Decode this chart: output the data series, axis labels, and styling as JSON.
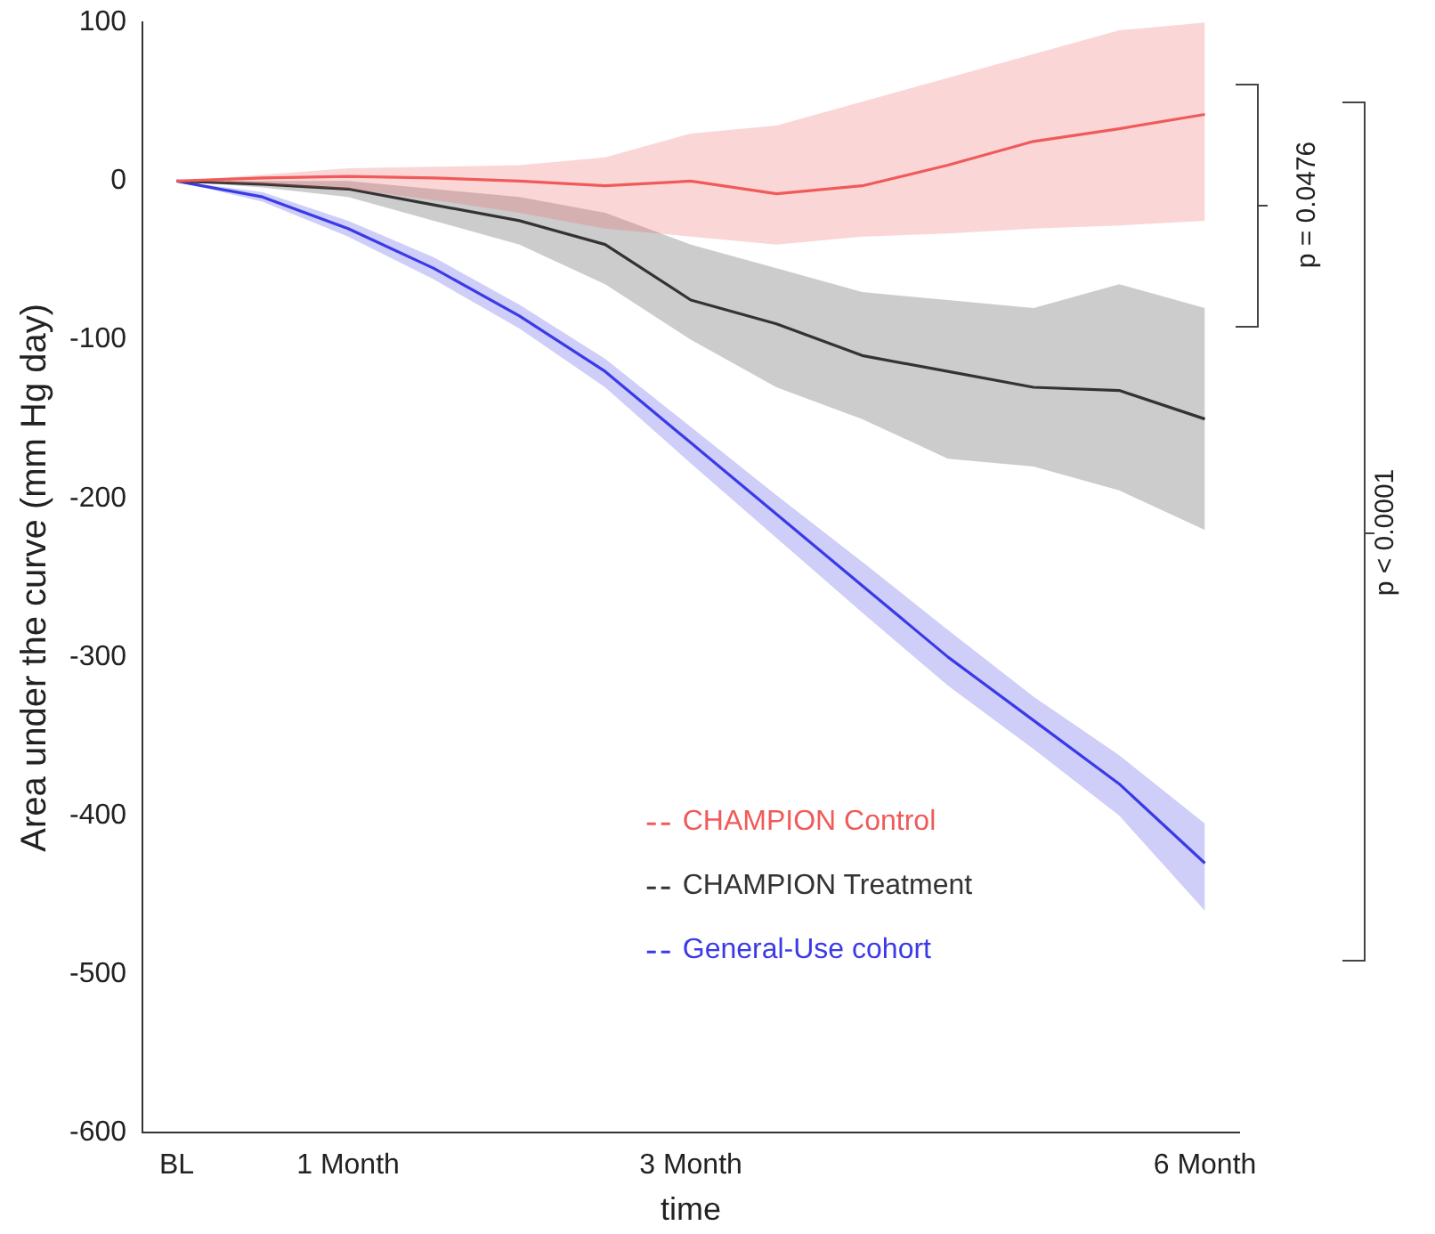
{
  "chart_data": {
    "type": "line",
    "xlabel": "time",
    "ylabel": "Area under the curve (mm Hg day)",
    "x": [
      0,
      0.5,
      1,
      1.5,
      2,
      2.5,
      3,
      3.5,
      4,
      4.5,
      5,
      5.5,
      6
    ],
    "xlim": [
      -0.2,
      6.2
    ],
    "xticks": [
      {
        "value": 0,
        "label": "BL"
      },
      {
        "value": 1,
        "label": "1 Month"
      },
      {
        "value": 3,
        "label": "3 Month"
      },
      {
        "value": 6,
        "label": "6 Month"
      }
    ],
    "ylim": [
      -600,
      100
    ],
    "yticks": [
      -600,
      -500,
      -400,
      -300,
      -200,
      -100,
      0,
      100
    ],
    "grid": false,
    "legend": "bottom right",
    "marker": "none",
    "line_style": "solid",
    "series": [
      {
        "name": "CHAMPION Control",
        "color": "#f05a5a",
        "values": [
          0,
          2,
          3,
          2,
          0,
          -3,
          0,
          -8,
          -3,
          10,
          25,
          33,
          42
        ],
        "lower": [
          0,
          -2,
          -5,
          -12,
          -20,
          -30,
          -35,
          -40,
          -35,
          -33,
          -30,
          -28,
          -25
        ],
        "upper": [
          0,
          4,
          8,
          9,
          10,
          15,
          30,
          35,
          50,
          65,
          80,
          95,
          100
        ]
      },
      {
        "name": "CHAMPION Treatment",
        "color": "#333333",
        "values": [
          0,
          -2,
          -5,
          -15,
          -25,
          -40,
          -75,
          -90,
          -110,
          -120,
          -130,
          -132,
          -150
        ],
        "lower": [
          0,
          -4,
          -10,
          -25,
          -40,
          -65,
          -100,
          -130,
          -150,
          -175,
          -180,
          -195,
          -220
        ],
        "upper": [
          0,
          0,
          0,
          -5,
          -10,
          -20,
          -40,
          -55,
          -70,
          -75,
          -80,
          -65,
          -80
        ]
      },
      {
        "name": "General-Use cohort",
        "color": "#3a3ae6",
        "values": [
          0,
          -10,
          -30,
          -55,
          -85,
          -120,
          -165,
          -210,
          -255,
          -300,
          -340,
          -380,
          -430
        ],
        "lower": [
          0,
          -13,
          -35,
          -62,
          -93,
          -130,
          -178,
          -225,
          -272,
          -318,
          -358,
          -400,
          -460
        ],
        "upper": [
          0,
          -7,
          -25,
          -48,
          -78,
          -112,
          -155,
          -198,
          -240,
          -283,
          -325,
          -362,
          -405
        ]
      }
    ],
    "annotations": [
      "p = 0.0476",
      "p < 0.0001"
    ]
  }
}
